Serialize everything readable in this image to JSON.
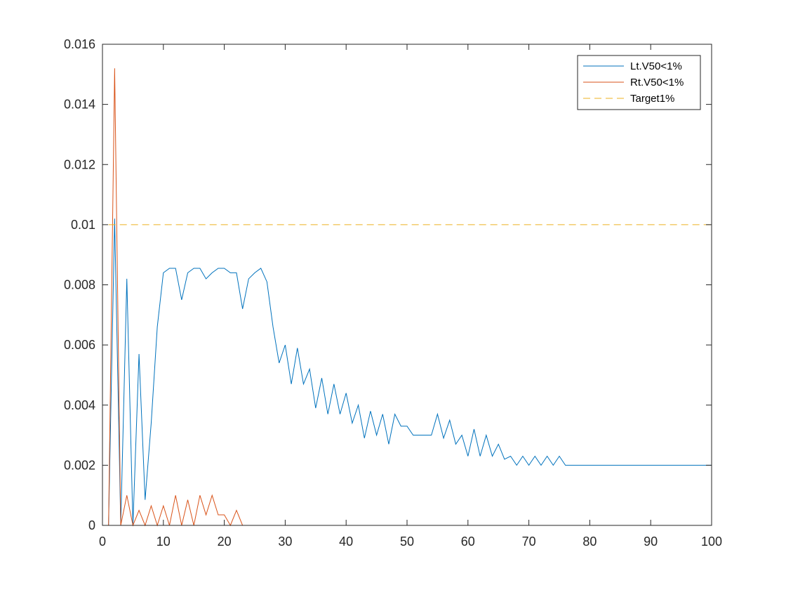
{
  "chart_data": {
    "type": "line",
    "xlim": [
      0,
      100
    ],
    "ylim": [
      0,
      0.016
    ],
    "xticks": [
      "0",
      "10",
      "20",
      "30",
      "40",
      "50",
      "60",
      "70",
      "80",
      "90",
      "100"
    ],
    "yticks": [
      "0",
      "0.002",
      "0.004",
      "0.006",
      "0.008",
      "0.01",
      "0.012",
      "0.014",
      "0.016"
    ],
    "grid": false,
    "legend_position": "top-right",
    "series": [
      {
        "name": "Lt.V50<1%",
        "color": "#0072BD",
        "style": "solid",
        "x": [
          1,
          2,
          3,
          4,
          5,
          6,
          7,
          8,
          9,
          10,
          11,
          12,
          13,
          14,
          15,
          16,
          17,
          18,
          19,
          20,
          21,
          22,
          23,
          24,
          25,
          26,
          27,
          28,
          29,
          30,
          31,
          32,
          33,
          34,
          35,
          36,
          37,
          38,
          39,
          40,
          41,
          42,
          43,
          44,
          45,
          46,
          47,
          48,
          49,
          50,
          51,
          52,
          53,
          54,
          55,
          56,
          57,
          58,
          59,
          60,
          61,
          62,
          63,
          64,
          65,
          66,
          67,
          68,
          69,
          70,
          71,
          72,
          73,
          74,
          75,
          76,
          100
        ],
        "y": [
          0,
          0.0102,
          0,
          0.0082,
          0,
          0.0057,
          0.00085,
          0.0034,
          0.0066,
          0.0084,
          0.00855,
          0.00855,
          0.0075,
          0.0084,
          0.00855,
          0.00855,
          0.0082,
          0.0084,
          0.00855,
          0.00855,
          0.0084,
          0.0084,
          0.0072,
          0.0082,
          0.0084,
          0.00855,
          0.0081,
          0.0066,
          0.0054,
          0.006,
          0.0047,
          0.0059,
          0.0047,
          0.0052,
          0.0039,
          0.0049,
          0.0037,
          0.0047,
          0.0037,
          0.0044,
          0.0034,
          0.004,
          0.0029,
          0.0038,
          0.003,
          0.0037,
          0.0027,
          0.0037,
          0.0033,
          0.0033,
          0.003,
          0.003,
          0.003,
          0.003,
          0.0037,
          0.0029,
          0.0035,
          0.0027,
          0.003,
          0.0023,
          0.0032,
          0.0023,
          0.003,
          0.0023,
          0.0027,
          0.0022,
          0.0023,
          0.002,
          0.0023,
          0.002,
          0.0023,
          0.002,
          0.0023,
          0.002,
          0.0023,
          0.002,
          0.002
        ]
      },
      {
        "name": "Rt.V50<1%",
        "color": "#D95319",
        "style": "solid",
        "x": [
          1,
          2,
          3,
          4,
          5,
          6,
          7,
          8,
          9,
          10,
          11,
          12,
          13,
          14,
          15,
          16,
          17,
          18,
          19,
          20,
          21,
          22,
          23,
          100
        ],
        "y": [
          0,
          0.0152,
          0,
          0.001,
          0,
          0.0005,
          0,
          0.00065,
          0,
          0.00065,
          0,
          0.001,
          0,
          0.00085,
          0,
          0.001,
          0.00035,
          0.001,
          0.00035,
          0.00035,
          0,
          0.0005,
          0,
          0
        ]
      },
      {
        "name": "Target1%",
        "color": "#EDB120",
        "style": "dashed",
        "x": [
          1,
          100
        ],
        "y": [
          0.01,
          0.01
        ]
      }
    ]
  }
}
